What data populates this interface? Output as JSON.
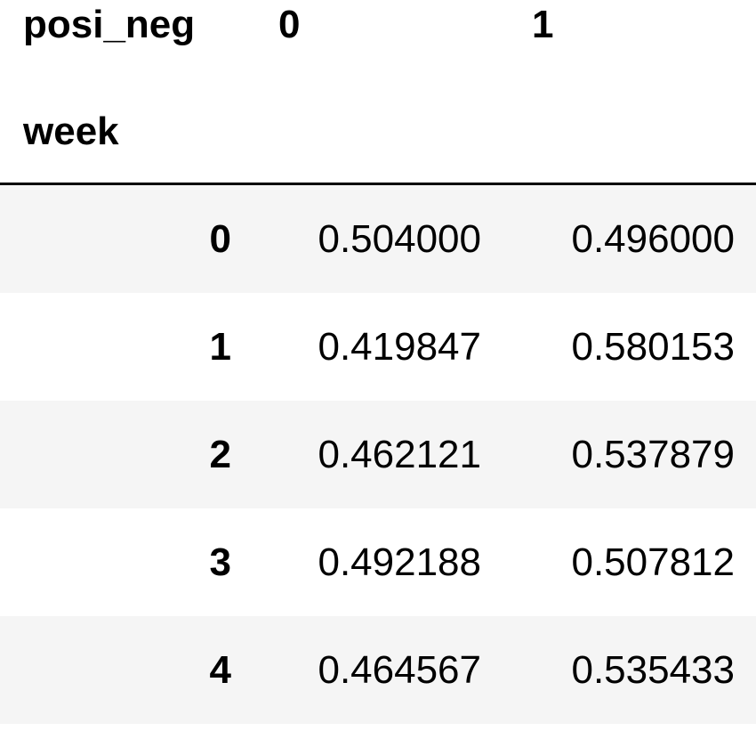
{
  "table": {
    "columns_name": "posi_neg",
    "columns": [
      "0",
      "1"
    ],
    "index_name": "week",
    "rows": [
      {
        "index": "0",
        "values": [
          "0.504000",
          "0.496000"
        ]
      },
      {
        "index": "1",
        "values": [
          "0.419847",
          "0.580153"
        ]
      },
      {
        "index": "2",
        "values": [
          "0.462121",
          "0.537879"
        ]
      },
      {
        "index": "3",
        "values": [
          "0.492188",
          "0.507812"
        ]
      },
      {
        "index": "4",
        "values": [
          "0.464567",
          "0.535433"
        ]
      }
    ]
  }
}
